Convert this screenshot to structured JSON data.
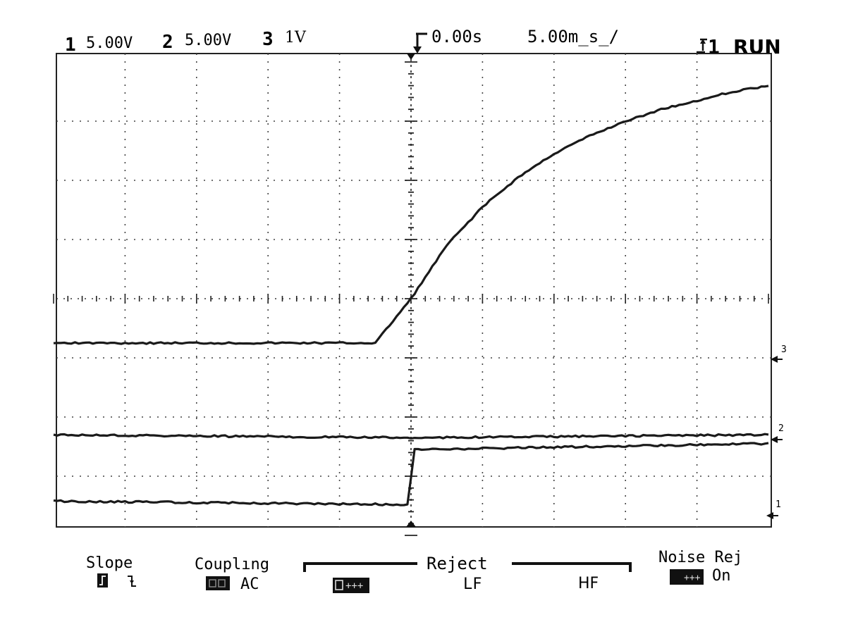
{
  "header": {
    "ch1_num": "1",
    "ch1_scale": "5.00V",
    "ch2_num": "2",
    "ch2_scale": "5.00V",
    "ch3_num": "3",
    "ch3_scale": "1V",
    "trigger_time": "0.00s",
    "timebase": "5.00m̲s̲/",
    "trigger_source": "1",
    "run_state": "RUN"
  },
  "markers": {
    "ch1": "1",
    "ch2": "2",
    "ch3": "3"
  },
  "menu": {
    "slope_label": "Slope",
    "coupling_label": "Couplıng",
    "coupling_value": "AC",
    "reject_label": "Reject",
    "reject_lf": "LF",
    "reject_hf": "HF",
    "noise_rej_label": "Noise Rej",
    "noise_rej_value": "On"
  },
  "chart_data": {
    "type": "line",
    "title": "",
    "xlabel": "",
    "ylabel": "",
    "time_per_div": "5.00ms",
    "xlim_div": [
      -5,
      5
    ],
    "ylim_div": [
      -4,
      4
    ],
    "grid": "dotted",
    "series": [
      {
        "name": "3",
        "color": "#1a1a1a",
        "x_div": [
          -5.0,
          -0.5,
          0.0,
          0.5,
          1.0,
          1.5,
          2.0,
          2.5,
          3.0,
          3.5,
          4.0,
          4.5,
          5.0
        ],
        "y_div": [
          -0.75,
          -0.75,
          0.0,
          0.9,
          1.55,
          2.05,
          2.45,
          2.75,
          3.0,
          3.2,
          3.35,
          3.5,
          3.6
        ]
      },
      {
        "name": "2",
        "color": "#1a1a1a",
        "x_div": [
          -5.0,
          0.0,
          5.0
        ],
        "y_div": [
          -2.3,
          -2.35,
          -2.3
        ]
      },
      {
        "name": "1",
        "color": "#1a1a1a",
        "x_div": [
          -5.0,
          -0.05,
          0.05,
          5.0
        ],
        "y_div": [
          -3.42,
          -3.48,
          -2.55,
          -2.45
        ]
      }
    ]
  }
}
